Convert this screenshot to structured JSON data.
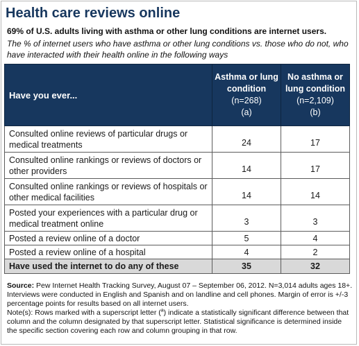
{
  "title": "Health care reviews online",
  "subtitle": "69% of U.S. adults living with asthma or other lung conditions are internet users.",
  "description": "The % of internet users who have asthma or other lung conditions vs. those who do not, who have interacted with their health online in the following ways",
  "table": {
    "question_header": "Have you ever...",
    "groups": [
      {
        "name": "Asthma or lung condition",
        "n": "(n=268)",
        "letter": "(a)"
      },
      {
        "name": "No asthma or lung condition",
        "n": "(n=2,109)",
        "letter": "(b)"
      }
    ],
    "rows": [
      {
        "label": "Consulted online reviews of particular drugs or medical treatments",
        "a": "24",
        "b": "17"
      },
      {
        "label": "Consulted online rankings or reviews of doctors or other providers",
        "a": "14",
        "b": "17"
      },
      {
        "label": "Consulted online rankings or reviews of hospitals or other medical facilities",
        "a": "14",
        "b": "14"
      },
      {
        "label": "Posted your experiences with a particular drug or medical treatment online",
        "a": "3",
        "b": "3"
      },
      {
        "label": "Posted a review online of a doctor",
        "a": "5",
        "b": "4"
      },
      {
        "label": "Posted a review online of a hospital",
        "a": "4",
        "b": "2"
      }
    ],
    "summary": {
      "label": "Have used the internet to do any of these",
      "a": "35",
      "b": "32"
    }
  },
  "footnote": {
    "source_label": "Source:",
    "source_text": "Pew Internet Health Tracking Survey, August 07 – September 06, 2012. N=3,014 adults ages 18+. Interviews were conducted in English and Spanish and on landline and cell phones. Margin of error is +/-3 percentage points for results based on all internet users.",
    "note_before": "Note(s): Rows marked with a superscript letter (",
    "note_sup": "a",
    "note_after": ") indicate a statistically significant difference between that column and the column designated by that superscript letter. Statistical significance is determined inside the specific section covering each row and column grouping in that row."
  }
}
